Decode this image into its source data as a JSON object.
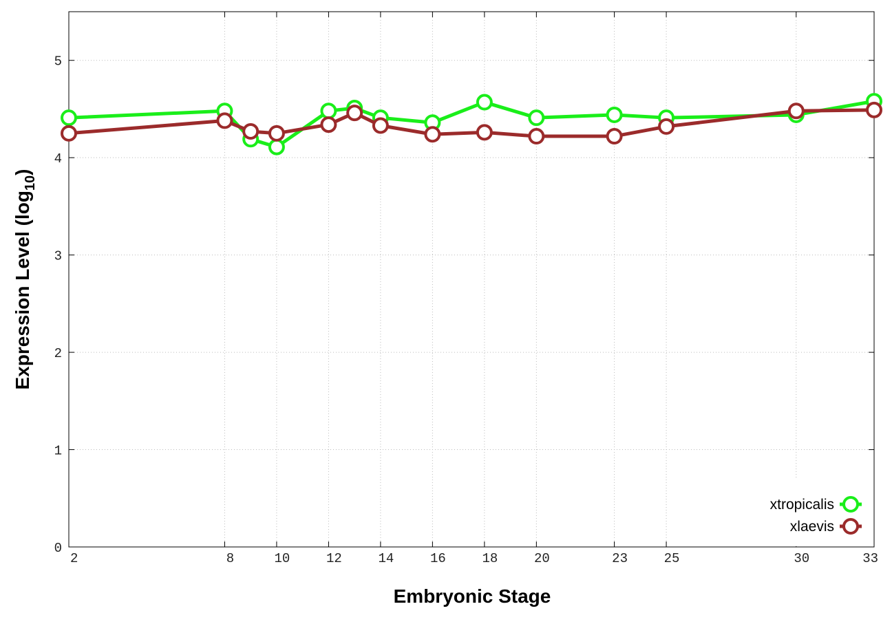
{
  "chart_data": {
    "type": "line",
    "xlabel": "Embryonic Stage",
    "ylabel": {
      "text": "Expression Level (log",
      "subscript": "10",
      "suffix": ")"
    },
    "x": [
      2,
      8,
      9,
      10,
      12,
      13,
      14,
      16,
      18,
      20,
      23,
      25,
      30,
      33
    ],
    "series": [
      {
        "name": "xtropicalis",
        "color": "#1aee1a",
        "values": [
          4.41,
          4.48,
          4.19,
          4.11,
          4.48,
          4.51,
          4.41,
          4.36,
          4.57,
          4.41,
          4.44,
          4.41,
          4.44,
          4.58
        ]
      },
      {
        "name": "xlaevis",
        "color": "#9b2b2b",
        "values": [
          4.25,
          4.38,
          4.27,
          4.25,
          4.34,
          4.46,
          4.33,
          4.24,
          4.26,
          4.22,
          4.22,
          4.32,
          4.48,
          4.49
        ]
      }
    ],
    "xlim": [
      2,
      33
    ],
    "xticks": [
      2,
      8,
      10,
      12,
      14,
      16,
      18,
      20,
      23,
      25,
      30,
      33
    ],
    "ylim": [
      0,
      5.5
    ],
    "yticks": [
      0,
      1,
      2,
      3,
      4,
      5
    ],
    "grid": true,
    "legend": "lower right"
  }
}
